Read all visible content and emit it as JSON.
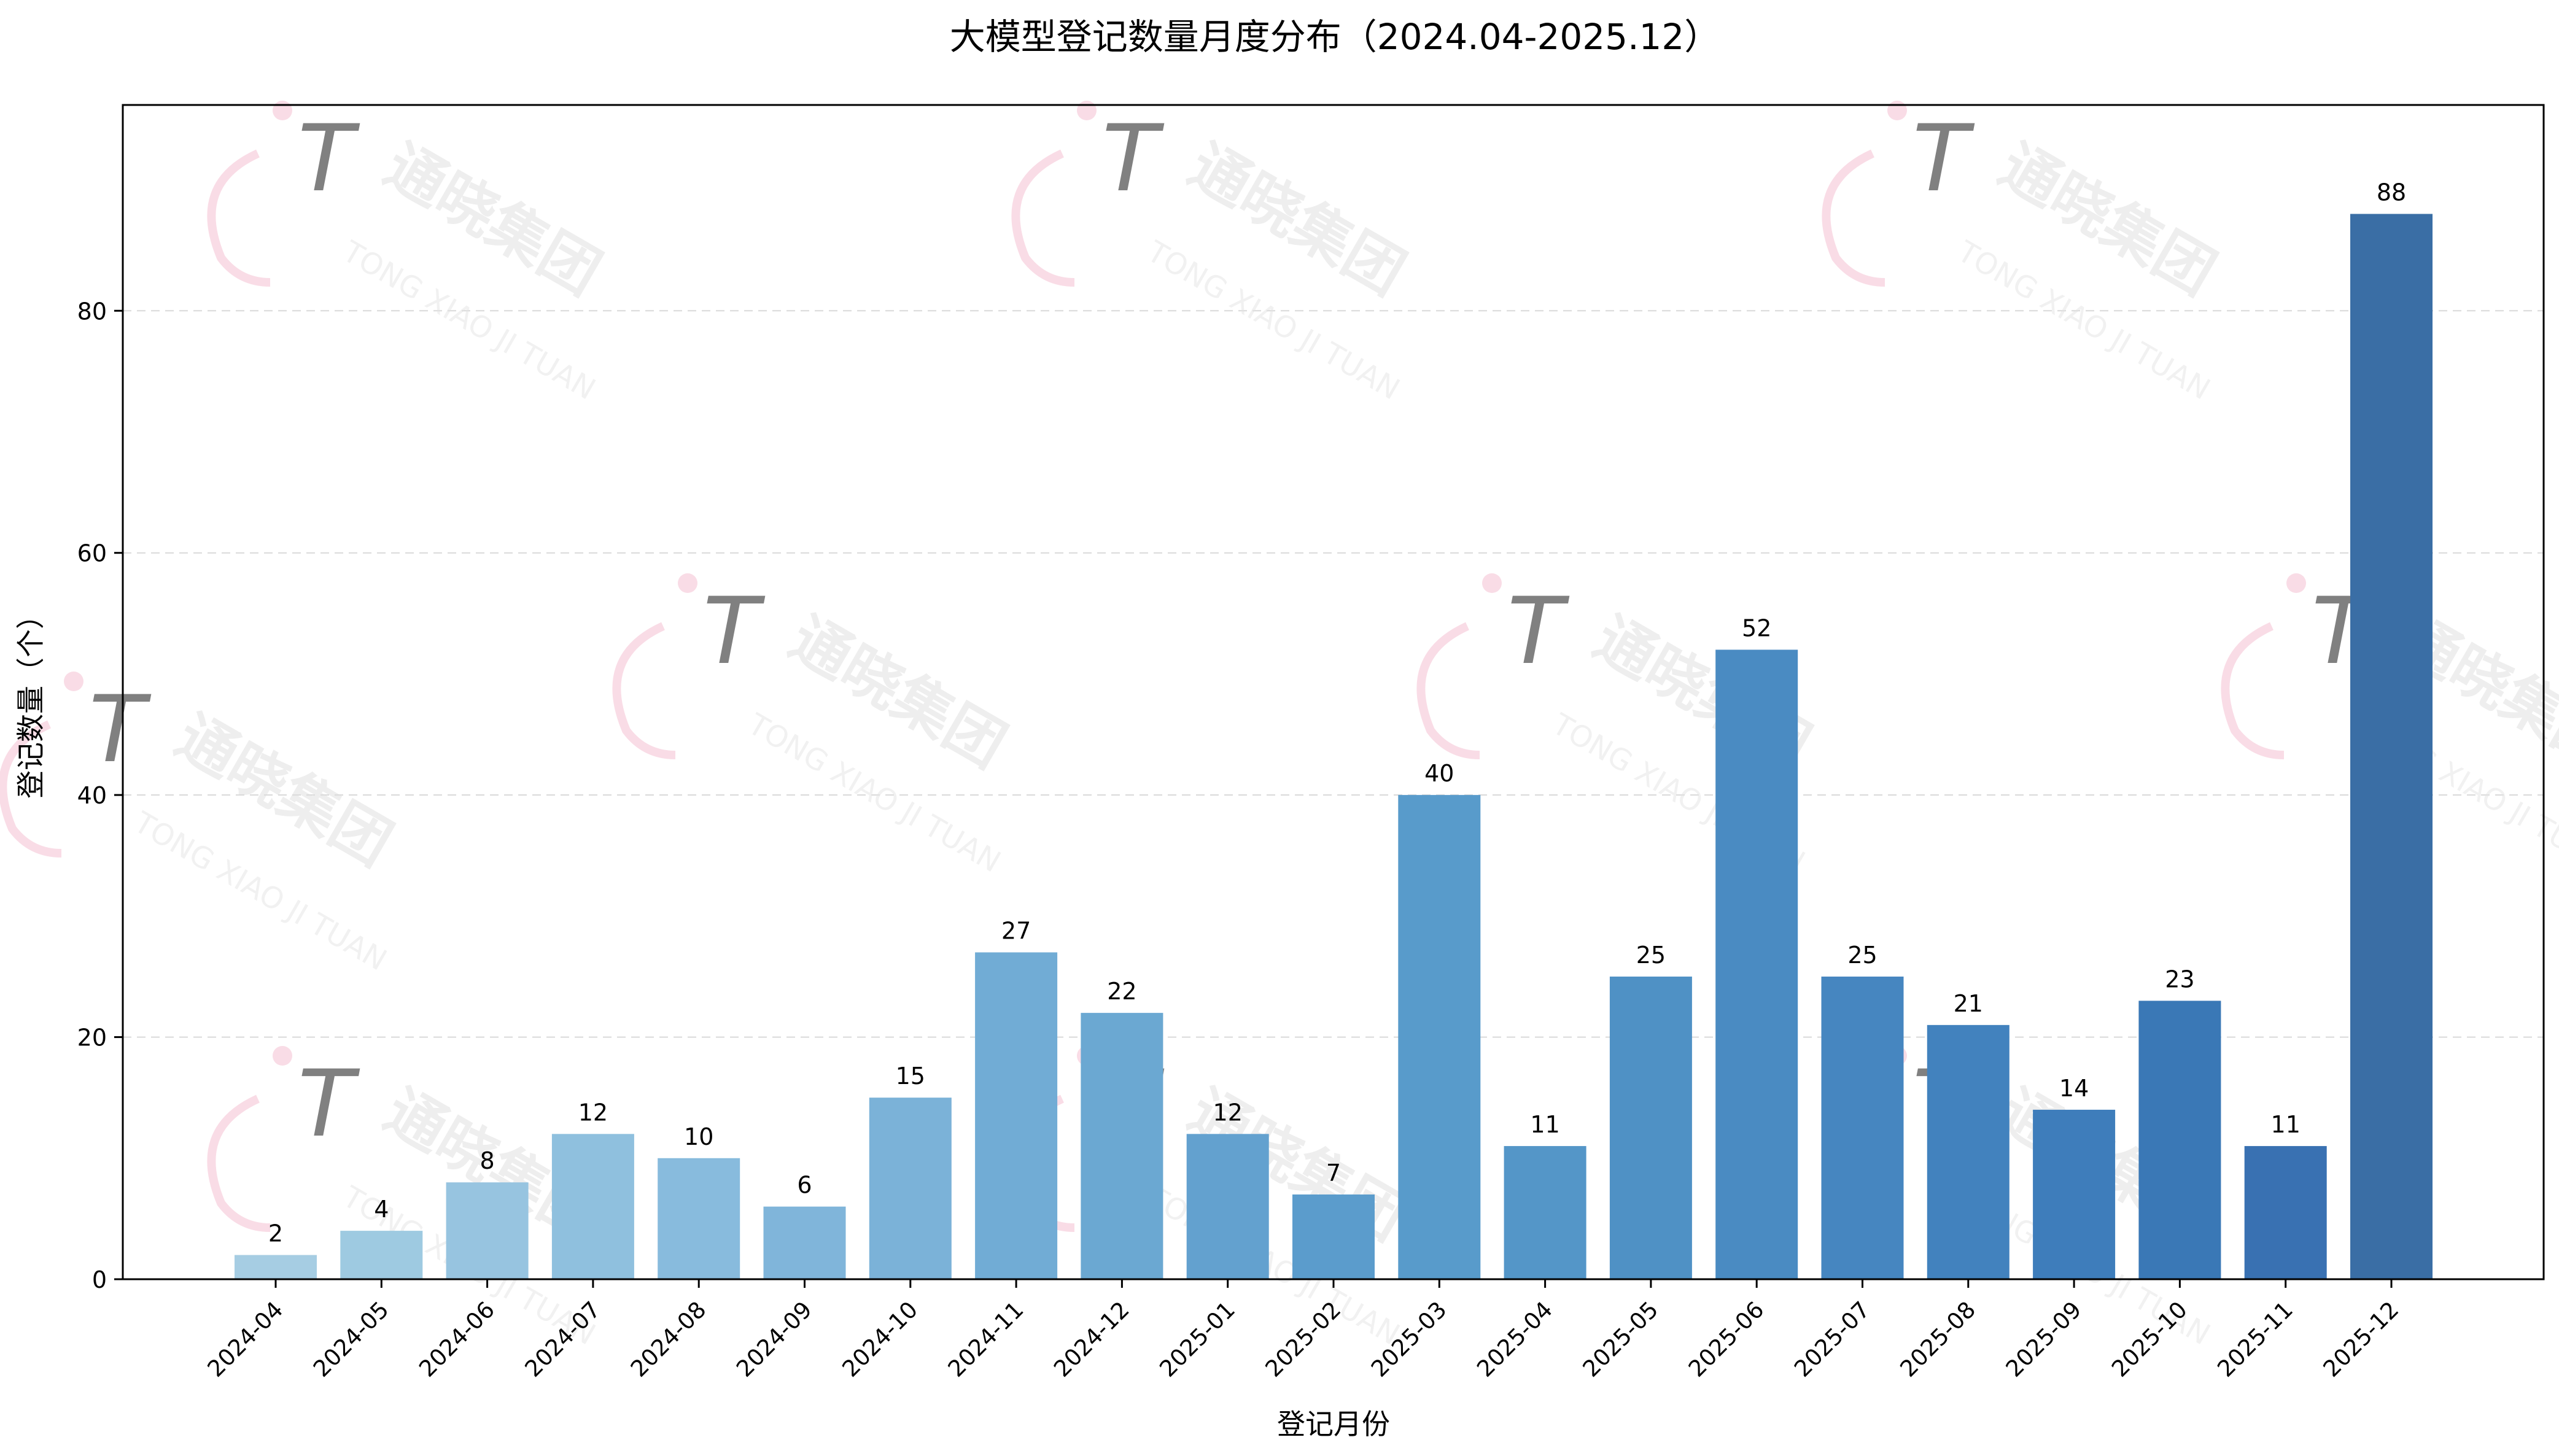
{
  "chart_data": {
    "type": "bar",
    "title": "大模型登记数量月度分布（2024.04-2025.12）",
    "xlabel": "登记月份",
    "ylabel": "登记数量（个）",
    "ylim": [
      0,
      97
    ],
    "yticks": [
      0,
      20,
      40,
      60,
      80
    ],
    "grid": "y-dashed",
    "categories": [
      "2024-04",
      "2024-05",
      "2024-06",
      "2024-07",
      "2024-08",
      "2024-09",
      "2024-10",
      "2024-11",
      "2024-12",
      "2025-01",
      "2025-02",
      "2025-03",
      "2025-04",
      "2025-05",
      "2025-06",
      "2025-07",
      "2025-08",
      "2025-09",
      "2025-10",
      "2025-11",
      "2025-12"
    ],
    "values": [
      2,
      4,
      8,
      12,
      10,
      6,
      15,
      27,
      22,
      12,
      7,
      40,
      11,
      25,
      52,
      25,
      21,
      14,
      23,
      11,
      88
    ],
    "bar_colors": [
      "#a6cde3",
      "#9ecae1",
      "#97c4e0",
      "#8fc0de",
      "#88bbdd",
      "#80b5da",
      "#7bb2d8",
      "#71acd5",
      "#6ba8d2",
      "#63a1cf",
      "#5b9ccc",
      "#589bcb",
      "#5496c8",
      "#4f91c5",
      "#4a8bc2",
      "#4686c0",
      "#4282be",
      "#3e7dbb",
      "#3a78b6",
      "#3971b2",
      "#3a6ea5"
    ]
  },
  "watermark": {
    "cn": "通晓集团",
    "en": "TONG XIAO JI TUAN"
  }
}
